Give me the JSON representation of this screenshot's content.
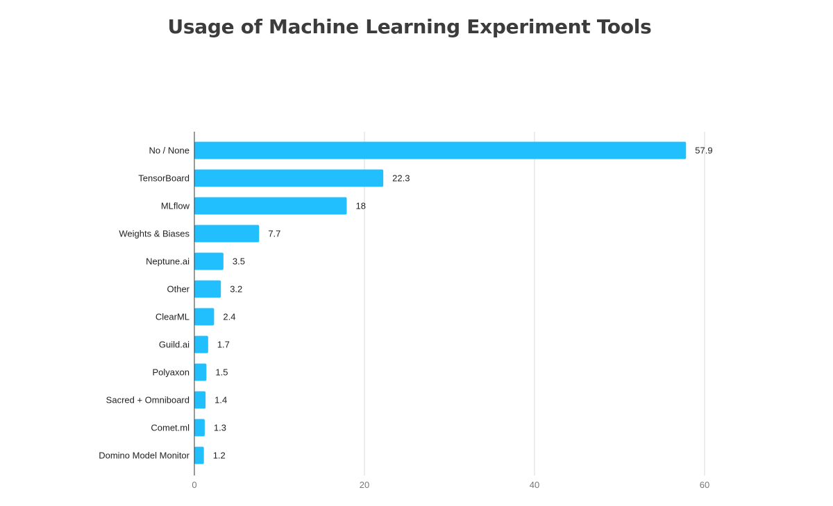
{
  "chart_data": {
    "type": "bar",
    "orientation": "horizontal",
    "title": "Usage of Machine Learning Experiment Tools",
    "xlabel": "",
    "ylabel": "",
    "categories": [
      "No / None",
      "TensorBoard",
      "MLflow",
      "Weights & Biases",
      "Neptune.ai",
      "Other",
      "ClearML",
      "Guild.ai",
      "Polyaxon",
      "Sacred + Omniboard",
      "Comet.ml",
      "Domino Model Monitor"
    ],
    "values": [
      57.9,
      22.3,
      18,
      7.7,
      3.5,
      3.2,
      2.4,
      1.7,
      1.5,
      1.4,
      1.3,
      1.2
    ],
    "value_labels": [
      "57.9",
      "22.3",
      "18",
      "7.7",
      "3.5",
      "3.2",
      "2.4",
      "1.7",
      "1.5",
      "1.4",
      "1.3",
      "1.2"
    ],
    "xlim": [
      0,
      60
    ],
    "xticks": [
      0,
      20,
      40,
      60
    ],
    "xtick_labels": [
      "0",
      "20",
      "40",
      "60"
    ],
    "grid": "vertical",
    "legend": "none",
    "bar_color": "#22bfff",
    "grid_color": "#d9d9d9",
    "axis_color": "#333333"
  }
}
